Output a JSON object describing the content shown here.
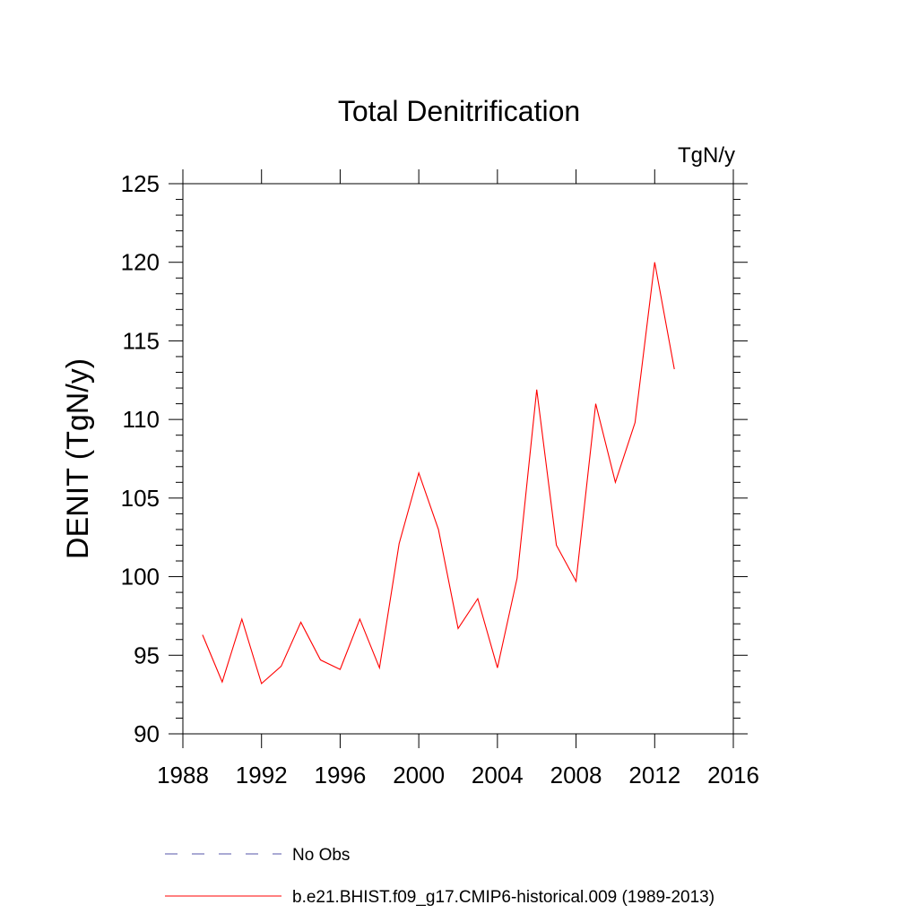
{
  "chart_data": {
    "type": "line",
    "title": "Total Denitrification",
    "units": "TgN/y",
    "ylabel": "DENIT  (TgN/y)",
    "xlabel": "",
    "xlim": [
      1988,
      2016
    ],
    "ylim": [
      90,
      125
    ],
    "x_ticks": [
      1988,
      1992,
      1996,
      2000,
      2004,
      2008,
      2012,
      2016
    ],
    "y_ticks": [
      90,
      95,
      100,
      105,
      110,
      115,
      120,
      125
    ],
    "grid": false,
    "legend_position": "bottom",
    "series": [
      {
        "name": "b.e21.BHIST.f09_g17.CMIP6-historical.009 (1989-2013)",
        "color": "#ff0000",
        "style": "solid",
        "x": [
          1989,
          1990,
          1991,
          1992,
          1993,
          1994,
          1995,
          1996,
          1997,
          1998,
          1999,
          2000,
          2001,
          2002,
          2003,
          2004,
          2005,
          2006,
          2007,
          2008,
          2009,
          2010,
          2011,
          2012,
          2013
        ],
        "y": [
          96.3,
          93.3,
          97.3,
          93.2,
          94.3,
          97.1,
          94.7,
          94.1,
          97.3,
          94.2,
          102.1,
          106.6,
          103.0,
          96.7,
          98.6,
          94.2,
          99.9,
          111.9,
          102.0,
          99.7,
          111.0,
          106.0,
          109.8,
          120.0,
          113.2
        ]
      }
    ],
    "legend": [
      {
        "label": "No Obs",
        "color": "#5555aa",
        "style": "dashed"
      },
      {
        "label": "b.e21.BHIST.f09_g17.CMIP6-historical.009 (1989-2013)",
        "color": "#ff0000",
        "style": "solid"
      }
    ]
  }
}
